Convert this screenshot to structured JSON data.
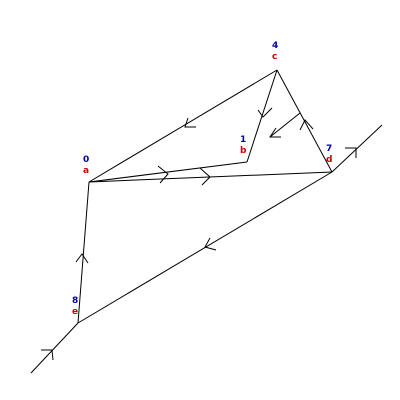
{
  "colors": {
    "edge": "#000000",
    "number_label": "#0000aa",
    "letter_label": "#cc0000",
    "background": "#ffffff"
  },
  "nodes": [
    {
      "id": "a",
      "number": "0",
      "letter": "a"
    },
    {
      "id": "b",
      "number": "1",
      "letter": "b"
    },
    {
      "id": "c",
      "number": "4",
      "letter": "c"
    },
    {
      "id": "d",
      "number": "7",
      "letter": "d"
    },
    {
      "id": "e",
      "number": "8",
      "letter": "e"
    }
  ],
  "edges": [
    {
      "from": "a",
      "to": "c"
    },
    {
      "from": "a",
      "to": "b"
    },
    {
      "from": "a",
      "to": "d"
    },
    {
      "from": "b",
      "to": "c"
    },
    {
      "from": "c",
      "to": "d"
    },
    {
      "from": "d",
      "to": "e"
    },
    {
      "from": "e",
      "to": "a"
    }
  ],
  "external_edges": [
    {
      "attached_to": "e",
      "direction": "in"
    },
    {
      "attached_to": "d",
      "direction": "out"
    }
  ]
}
